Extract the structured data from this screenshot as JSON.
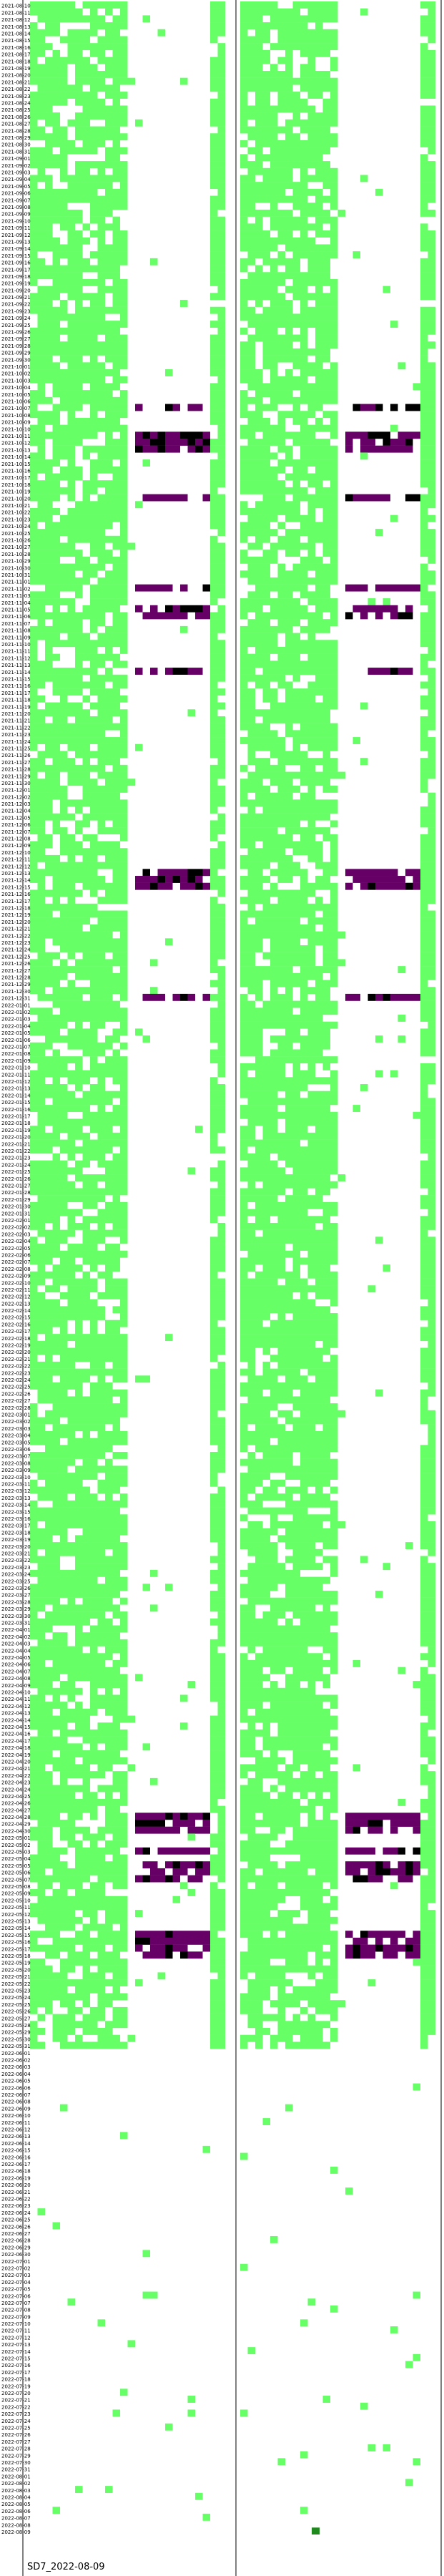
{
  "chart_data": {
    "type": "heatmap",
    "title": "",
    "xlabel": "",
    "ylabel": "",
    "footer_label": "SD7_2022-08-09",
    "start_date": "2021-08-10",
    "end_date": "2022-08-09",
    "grid": false,
    "legend": "none",
    "panels": 2,
    "colors": {
      "present": "#66ff66",
      "dark_green": "#1e8a1e",
      "purple": "#660066",
      "black": "#000000",
      "background": "#ffffff",
      "axis": "#000000"
    },
    "note_bands": [
      {
        "from": "2021-08-10",
        "to": "2022-05-31",
        "panel": 1,
        "fill": "present"
      },
      {
        "from": "2021-08-10",
        "to": "2022-05-31",
        "panel": 2,
        "fill": "present"
      }
    ],
    "purple_events": [
      "2021-10-07",
      "2021-10-11",
      "2021-10-12",
      "2021-10-13",
      "2021-10-20",
      "2021-11-02",
      "2021-11-05",
      "2021-11-06",
      "2021-11-14",
      "2021-12-13",
      "2021-12-14",
      "2021-12-15",
      "2021-12-31",
      "2022-04-28",
      "2022-04-29",
      "2022-04-30",
      "2022-05-03",
      "2022-05-05",
      "2022-05-06",
      "2022-05-07",
      "2022-05-15",
      "2022-05-16",
      "2022-05-17",
      "2022-05-18"
    ],
    "last_marker": "2022-08-09"
  }
}
